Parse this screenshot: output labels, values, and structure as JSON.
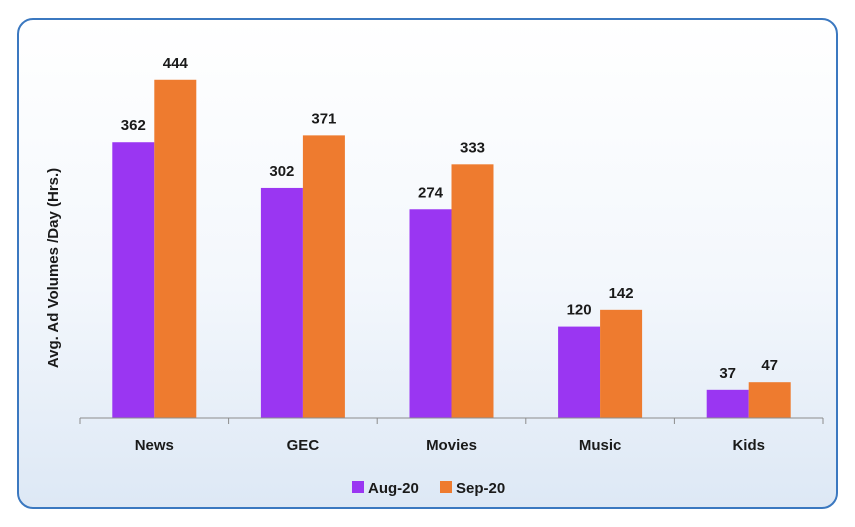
{
  "chart_data": {
    "type": "bar",
    "title": "",
    "xlabel": "",
    "ylabel": "Avg. Ad Volumes /Day (Hrs.)",
    "categories": [
      "News",
      "GEC",
      "Movies",
      "Music",
      "Kids"
    ],
    "series": [
      {
        "name": "Aug-20",
        "color": "#9a36f2",
        "values": [
          362,
          302,
          274,
          120,
          37
        ]
      },
      {
        "name": "Sep-20",
        "color": "#ee7b2f",
        "values": [
          444,
          371,
          333,
          142,
          47
        ]
      }
    ],
    "ylim": [
      0,
      445
    ],
    "grid": false,
    "data_labels": true,
    "legend": "bottom"
  }
}
